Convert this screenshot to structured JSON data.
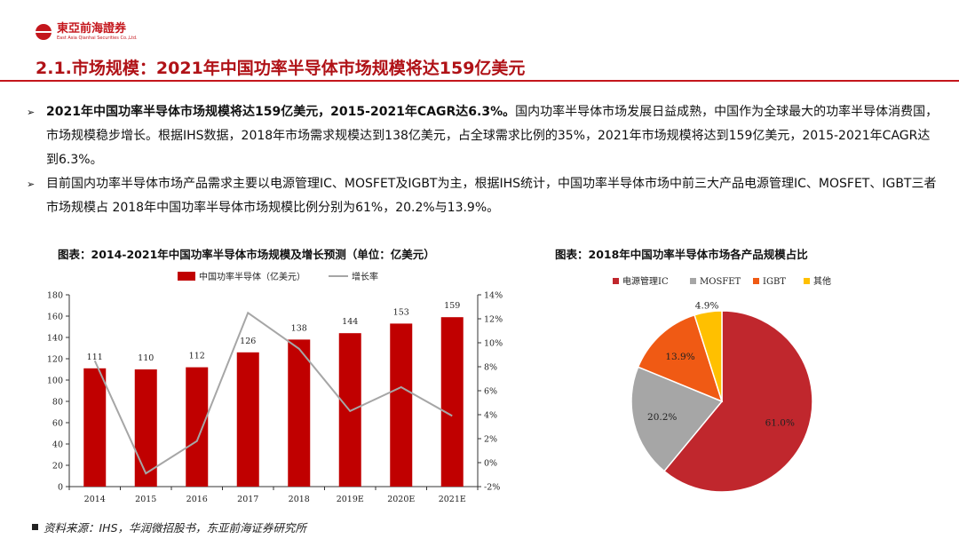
{
  "header": {
    "logo_cn": "東亞前海證券",
    "logo_en": "East Asia Qianhai Securities Co.,Ltd.",
    "title": "2.1.市场规模：2021年中国功率半导体市场规模将达159亿美元"
  },
  "bullets": [
    {
      "bold": "2021年中国功率半导体市场规模将达159亿美元，2015-2021年CAGR达6.3%。",
      "text": "国内功率半导体市场发展日益成熟，中国作为全球最大的功率半导体消费国，市场规模稳步增长。根据IHS数据，2018年市场需求规模达到138亿美元，占全球需求比例的35%，2021年市场规模将达到159亿美元，2015-2021年CAGR达到6.3%。"
    },
    {
      "bold": "",
      "text": "目前国内功率半导体市场产品需求主要以电源管理IC、MOSFET及IGBT为主，根据IHS统计，中国功率半导体市场中前三大产品电源管理IC、MOSFET、IGBT三者市场规模占 2018年中国功率半导体市场规模比例分别为61%，20.2%与13.9%。"
    }
  ],
  "left_chart_title": "图表：2014-2021年中国功率半导体市场规模及增长预测（单位：亿美元）",
  "right_chart_title": "图表：2018年中国功率半导体市场各产品规模占比",
  "source": "资料来源：IHS，华润微招股书，东亚前海证券研究所",
  "colors": {
    "bar": "#c00000",
    "line": "#a6a6a6",
    "brand": "#c4161c"
  },
  "chart_data": [
    {
      "type": "bar",
      "categories": [
        "2014",
        "2015",
        "2016",
        "2017",
        "2018",
        "2019E",
        "2020E",
        "2021E"
      ],
      "series": [
        {
          "name": "中国功率半导体（亿美元）",
          "type": "bar",
          "axis": "left",
          "values": [
            111,
            110,
            112,
            126,
            138,
            144,
            153,
            159
          ],
          "labels": [
            "111",
            "110",
            "112",
            "126",
            "138",
            "144",
            "153",
            "159"
          ]
        },
        {
          "name": "增长率",
          "type": "line",
          "axis": "right",
          "values": [
            8.5,
            -0.9,
            1.8,
            12.5,
            9.5,
            4.3,
            6.3,
            3.9
          ]
        }
      ],
      "ylim": [
        0,
        180
      ],
      "yticks": [
        0,
        20,
        40,
        60,
        80,
        100,
        120,
        140,
        160,
        180
      ],
      "y2lim": [
        -2,
        14
      ],
      "y2ticks": [
        "-2%",
        "0%",
        "2%",
        "4%",
        "6%",
        "8%",
        "10%",
        "12%",
        "14%"
      ],
      "legend": "top"
    },
    {
      "type": "pie",
      "categories": [
        "电源管理IC",
        "MOSFET",
        "IGBT",
        "其他"
      ],
      "values": [
        61.0,
        20.2,
        13.9,
        4.9
      ],
      "labels": [
        "61.0%",
        "20.2%",
        "13.9%",
        "4.9%"
      ],
      "colors": [
        "#c0272d",
        "#a6a6a6",
        "#f05a14",
        "#ffc000"
      ],
      "legend": "top"
    }
  ]
}
